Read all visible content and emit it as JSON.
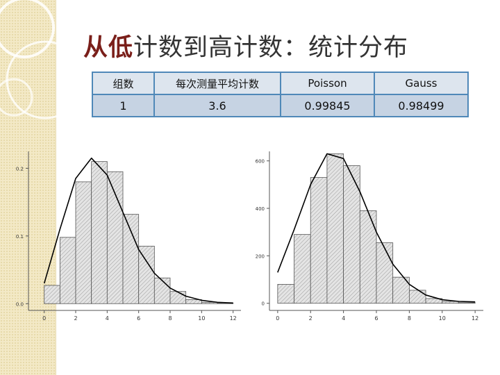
{
  "slide": {
    "title_emphasis": "从低",
    "title_rest": "计数到高计数：统计分布"
  },
  "table": {
    "headers": [
      "组数",
      "每次测量平均计数",
      "Poisson",
      "Gauss"
    ],
    "rows": [
      [
        "1",
        "3.6",
        "0.99845",
        "0.98499"
      ]
    ]
  },
  "chart_data": [
    {
      "type": "bar",
      "x": [
        0,
        1,
        2,
        3,
        4,
        5,
        6,
        7,
        8,
        9,
        10,
        11
      ],
      "values": [
        0.027,
        0.098,
        0.18,
        0.21,
        0.195,
        0.132,
        0.085,
        0.038,
        0.018,
        0.006,
        0.002,
        0.001
      ],
      "fit_curve": [
        [
          0,
          0.03
        ],
        [
          1,
          0.11
        ],
        [
          2,
          0.185
        ],
        [
          3,
          0.215
        ],
        [
          4,
          0.19
        ],
        [
          5,
          0.135
        ],
        [
          6,
          0.08
        ],
        [
          7,
          0.045
        ],
        [
          8,
          0.023
        ],
        [
          9,
          0.011
        ],
        [
          10,
          0.005
        ],
        [
          11,
          0.002
        ],
        [
          12,
          0.001
        ]
      ],
      "xlim": [
        -1,
        12.5
      ],
      "ylim": [
        -0.01,
        0.225
      ],
      "xticks": [
        "0",
        "2",
        "4",
        "6",
        "8",
        "10",
        "12"
      ],
      "yticks": [
        "0.0",
        "0.1",
        "0.2"
      ],
      "bar_color": "#e4e4e4",
      "curve_color": "#000000"
    },
    {
      "type": "bar",
      "x": [
        0,
        1,
        2,
        3,
        4,
        5,
        6,
        7,
        8,
        9,
        10,
        11
      ],
      "values": [
        80,
        290,
        530,
        630,
        580,
        390,
        255,
        110,
        55,
        20,
        8,
        3
      ],
      "fit_curve": [
        [
          0,
          130
        ],
        [
          1,
          310
        ],
        [
          2,
          500
        ],
        [
          3,
          630
        ],
        [
          4,
          610
        ],
        [
          5,
          470
        ],
        [
          6,
          300
        ],
        [
          7,
          165
        ],
        [
          8,
          80
        ],
        [
          9,
          35
        ],
        [
          10,
          15
        ],
        [
          11,
          8
        ],
        [
          12,
          6
        ]
      ],
      "xlim": [
        -0.5,
        12.5
      ],
      "ylim": [
        -30,
        640
      ],
      "xticks": [
        "0",
        "2",
        "4",
        "6",
        "8",
        "10",
        "12"
      ],
      "yticks": [
        "0",
        "200",
        "400",
        "600"
      ],
      "bar_color": "#e4e4e4",
      "curve_color": "#000000"
    }
  ]
}
